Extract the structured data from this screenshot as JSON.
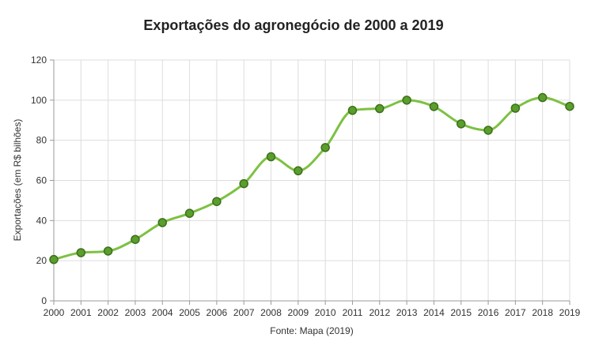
{
  "chart_data": {
    "type": "line",
    "title": "Exportações do agronegócio de 2000 a 2019",
    "ylabel": "Exportações (em R$ bilhões)",
    "xlabel": "Fonte: Mapa (2019)",
    "categories": [
      "2000",
      "2001",
      "2002",
      "2003",
      "2004",
      "2005",
      "2006",
      "2007",
      "2008",
      "2009",
      "2010",
      "2011",
      "2012",
      "2013",
      "2014",
      "2015",
      "2016",
      "2017",
      "2018",
      "2019"
    ],
    "series": [
      {
        "values": [
          20.6,
          24.0,
          24.8,
          30.6,
          39.0,
          43.6,
          49.5,
          58.4,
          71.8,
          64.8,
          76.4,
          94.9,
          95.8,
          100.0,
          96.8,
          88.2,
          85.0,
          96.0,
          101.3,
          96.9
        ]
      }
    ],
    "ylim": [
      0,
      120
    ],
    "yticks": [
      "0",
      "20",
      "40",
      "60",
      "80",
      "100",
      "120"
    ],
    "grid": true,
    "colors": {
      "line": "#7dc142",
      "marker_fill": "#5a9e2c",
      "marker_stroke": "#3d6f1c",
      "grid": "#dddddd"
    }
  }
}
